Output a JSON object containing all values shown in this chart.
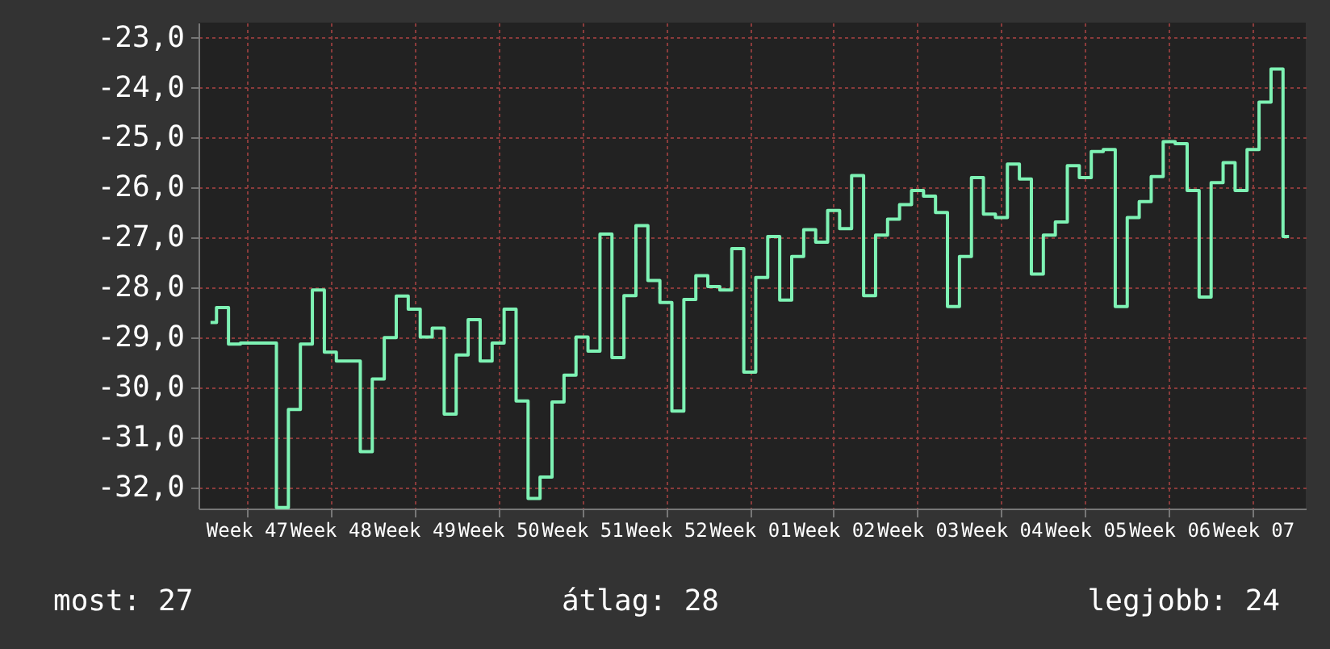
{
  "chart_data": {
    "type": "step",
    "categories": [
      null,
      null,
      null,
      "Week 47",
      null,
      null,
      null,
      null,
      null,
      null,
      "Week 48",
      null,
      null,
      null,
      null,
      null,
      null,
      "Week 49",
      null,
      null,
      null,
      null,
      null,
      null,
      "Week 50",
      null,
      null,
      null,
      null,
      null,
      null,
      "Week 51",
      null,
      null,
      null,
      null,
      null,
      null,
      "Week 52",
      null,
      null,
      null,
      null,
      null,
      null,
      "Week 01",
      null,
      null,
      null,
      null,
      null,
      null,
      "Week 02",
      null,
      null,
      null,
      null,
      null,
      null,
      "Week 03",
      null,
      null,
      null,
      null,
      null,
      null,
      "Week 04",
      null,
      null,
      null,
      null,
      null,
      null,
      "Week 05",
      null,
      null,
      null,
      null,
      null,
      null,
      "Week 06",
      null,
      null,
      null,
      null,
      null,
      null,
      "Week 07",
      null,
      null,
      null
    ],
    "series": [
      {
        "color": "#7ef2b4",
        "values": [
          -28.7,
          -28.4,
          -29.13,
          -29.11,
          -29.11,
          -29.11,
          -32.4,
          -30.44,
          -29.13,
          -28.05,
          -29.29,
          -29.47,
          -29.47,
          -31.28,
          -29.83,
          -29.0,
          -28.17,
          -28.43,
          -28.99,
          -28.81,
          -30.53,
          -29.35,
          -28.64,
          -29.47,
          -29.11,
          -28.43,
          -30.27,
          -32.22,
          -31.79,
          -30.29,
          -29.75,
          -28.99,
          -29.27,
          -26.93,
          -29.4,
          -28.16,
          -26.76,
          -27.86,
          -28.3,
          -30.47,
          -28.24,
          -27.76,
          -27.98,
          -28.05,
          -27.22,
          -29.69,
          -27.8,
          -26.98,
          -28.25,
          -27.38,
          -26.84,
          -27.09,
          -26.46,
          -26.82,
          -25.76,
          -28.16,
          -26.95,
          -26.63,
          -26.34,
          -26.06,
          -26.17,
          -26.5,
          -28.38,
          -27.38,
          -25.8,
          -26.53,
          -26.6,
          -25.53,
          -25.83,
          -27.73,
          -26.95,
          -26.69,
          -25.56,
          -25.8,
          -25.28,
          -25.24,
          -28.38,
          -26.6,
          -26.28,
          -25.78,
          -25.08,
          -25.12,
          -26.06,
          -28.19,
          -25.9,
          -25.5,
          -26.06,
          -25.24,
          -24.29,
          -23.63,
          -26.98
        ]
      }
    ],
    "ylim": [
      -32.42,
      -22.7
    ],
    "yticks": [
      {
        "value": -32,
        "label": "-32,0"
      },
      {
        "value": -31,
        "label": "-31,0"
      },
      {
        "value": -30,
        "label": "-30,0"
      },
      {
        "value": -29,
        "label": "-29,0"
      },
      {
        "value": -28,
        "label": "-28,0"
      },
      {
        "value": -27,
        "label": "-27,0"
      },
      {
        "value": -26,
        "label": "-26,0"
      },
      {
        "value": -25,
        "label": "-25,0"
      },
      {
        "value": -24,
        "label": "-24,0"
      },
      {
        "value": -23,
        "label": "-23,0"
      }
    ],
    "grid": true,
    "annotations": [
      "most: 27",
      "átlag: 28",
      "legjobb: 24"
    ]
  }
}
